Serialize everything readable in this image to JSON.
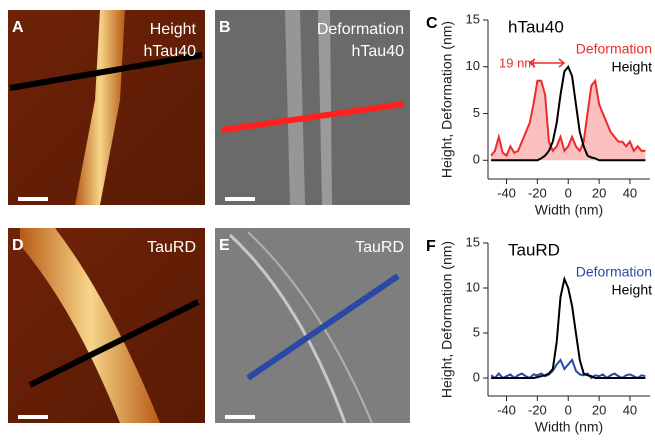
{
  "panels": [
    {
      "letter": "A",
      "labels": [
        "Height",
        "hTau40"
      ]
    },
    {
      "letter": "B",
      "labels": [
        "Deformation",
        "hTau40"
      ]
    },
    {
      "letter": "D",
      "labels": [
        "TauRD"
      ]
    },
    {
      "letter": "E",
      "labels": [
        "TauRD"
      ]
    }
  ],
  "chart_data": [
    {
      "type": "line",
      "panel": "C",
      "title": "hTau40",
      "xlabel": "Width (nm)",
      "ylabel": "Height, Deformation (nm)",
      "annotation": "19 nm",
      "x": [
        -50,
        -47.5,
        -45,
        -42.5,
        -40,
        -37.5,
        -35,
        -32.5,
        -30,
        -27.5,
        -25,
        -22.5,
        -20,
        -17.5,
        -15,
        -12.5,
        -10,
        -7.5,
        -5,
        -2.5,
        0,
        2.5,
        5,
        7.5,
        10,
        12.5,
        15,
        17.5,
        20,
        22.5,
        25,
        27.5,
        30,
        32.5,
        35,
        37.5,
        40,
        42.5,
        45,
        47.5,
        50
      ],
      "series": [
        {
          "name": "Deformation",
          "color": "#ee2b2b",
          "area": true,
          "values": [
            0.5,
            1,
            2.5,
            0.8,
            0.5,
            1.5,
            0.8,
            1,
            2,
            3,
            4,
            6,
            8.5,
            8.5,
            7,
            2,
            1,
            1.5,
            2.5,
            1,
            1.5,
            2.5,
            1.5,
            1,
            2,
            5,
            8,
            8.5,
            6,
            5,
            4,
            3,
            2.5,
            2,
            2,
            1.5,
            2,
            1,
            1.5,
            1,
            1
          ]
        },
        {
          "name": "Height",
          "color": "#000000",
          "area": false,
          "values": [
            0,
            0,
            0,
            0,
            0,
            0,
            0,
            0,
            0,
            0,
            0,
            0,
            0,
            0.2,
            0.5,
            1,
            2,
            4,
            7,
            9.5,
            10,
            9,
            6,
            3,
            1.5,
            0.5,
            0.3,
            0.2,
            0,
            0,
            0,
            0,
            0,
            0,
            0,
            0,
            0,
            0,
            0,
            0,
            0
          ]
        }
      ],
      "xlim": [
        -52,
        53
      ],
      "ylim": [
        -2,
        15
      ],
      "xticks": [
        -40,
        -20,
        0,
        20,
        40
      ],
      "yticks": [
        0,
        5,
        10,
        15
      ]
    },
    {
      "type": "line",
      "panel": "F",
      "title": "TauRD",
      "xlabel": "Width (nm)",
      "ylabel": "Height, Deformation (nm)",
      "x": [
        -50,
        -47.5,
        -45,
        -42.5,
        -40,
        -37.5,
        -35,
        -32.5,
        -30,
        -27.5,
        -25,
        -22.5,
        -20,
        -17.5,
        -15,
        -12.5,
        -10,
        -7.5,
        -5,
        -2.5,
        0,
        2.5,
        5,
        7.5,
        10,
        12.5,
        15,
        17.5,
        20,
        22.5,
        25,
        27.5,
        30,
        32.5,
        35,
        37.5,
        40,
        42.5,
        45,
        47.5,
        50
      ],
      "series": [
        {
          "name": "Deformation",
          "color": "#2a49a6",
          "area": false,
          "values": [
            0.3,
            0,
            0.5,
            0,
            0.2,
            0.4,
            0,
            0.3,
            0.5,
            0.2,
            0,
            0.4,
            0.3,
            0.5,
            0.2,
            0.4,
            0.8,
            1.5,
            2,
            1,
            1.5,
            2,
            0.8,
            0.4,
            0.3,
            0.5,
            0,
            0.3,
            0.2,
            0.4,
            0,
            0.3,
            0.5,
            0.2,
            0,
            0.3,
            0.4,
            0.2,
            0,
            0.3,
            0.2
          ]
        },
        {
          "name": "Height",
          "color": "#000000",
          "area": false,
          "values": [
            0,
            0,
            0,
            0,
            0,
            0,
            0,
            0,
            0,
            0,
            0,
            0,
            0.1,
            0.2,
            0.3,
            0.5,
            1,
            4,
            9,
            11,
            10,
            8,
            5,
            2,
            0.5,
            0.3,
            0.2,
            0,
            0,
            0,
            0,
            0,
            0,
            0,
            0,
            0,
            0,
            0,
            0,
            0,
            0
          ]
        }
      ],
      "xlim": [
        -52,
        53
      ],
      "ylim": [
        -2,
        15
      ],
      "xticks": [
        -40,
        -20,
        0,
        20,
        40
      ],
      "yticks": [
        0,
        5,
        10,
        15
      ]
    }
  ]
}
